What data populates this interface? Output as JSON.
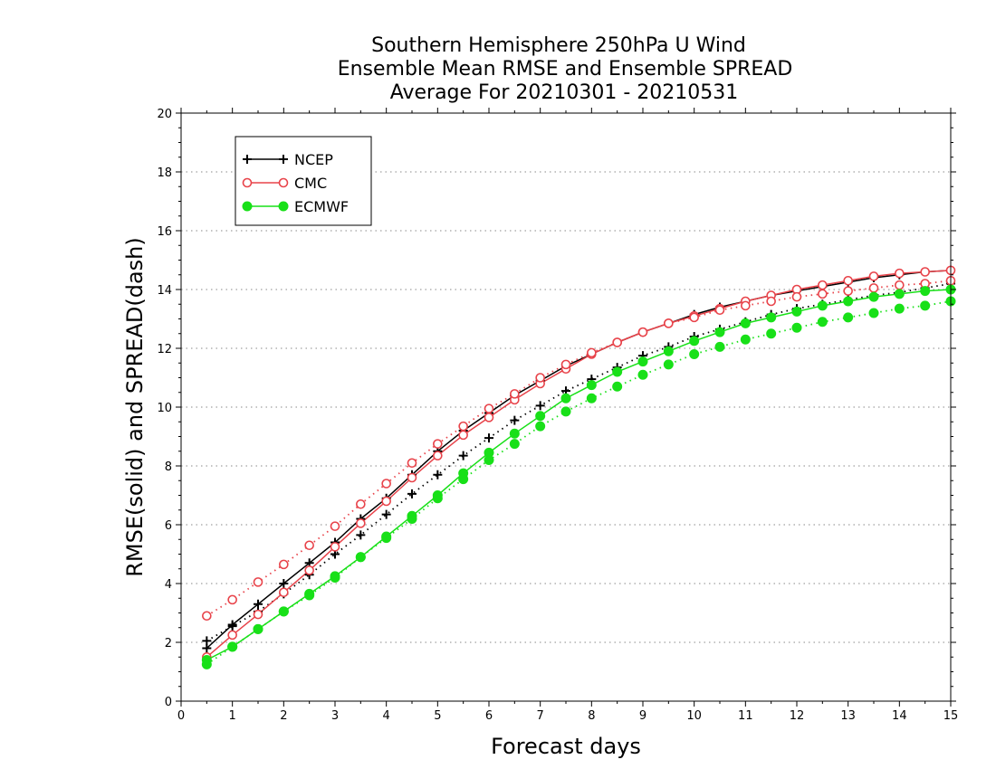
{
  "chart_data": {
    "type": "line",
    "title_lines": [
      "Southern Hemisphere 250hPa U Wind",
      "Ensemble Mean RMSE and Ensemble SPREAD",
      "Average For 20210301 - 20210531"
    ],
    "xlabel": "Forecast days",
    "ylabel": "RMSE(solid) and SPREAD(dash)",
    "xlim": [
      0,
      15
    ],
    "ylim": [
      0,
      20
    ],
    "x_ticks": [
      "0",
      "1",
      "2",
      "3",
      "4",
      "5",
      "6",
      "7",
      "8",
      "9",
      "10",
      "11",
      "12",
      "13",
      "14",
      "15"
    ],
    "y_ticks": [
      "0",
      "2",
      "4",
      "6",
      "8",
      "10",
      "12",
      "14",
      "16",
      "18",
      "20"
    ],
    "grid": "horizontal dotted",
    "legend_position": "top-left",
    "x": [
      0.5,
      1,
      1.5,
      2,
      2.5,
      3,
      3.5,
      4,
      4.5,
      5,
      5.5,
      6,
      6.5,
      7,
      7.5,
      8,
      8.5,
      9,
      9.5,
      10,
      10.5,
      11,
      11.5,
      12,
      12.5,
      13,
      13.5,
      14,
      14.5,
      15
    ],
    "series": [
      {
        "name": "NCEP",
        "color": "#000000",
        "marker": "plus",
        "rmse": [
          1.8,
          2.6,
          3.3,
          4.0,
          4.7,
          5.4,
          6.2,
          6.9,
          7.7,
          8.5,
          9.2,
          9.8,
          10.4,
          10.9,
          11.4,
          11.8,
          12.2,
          12.55,
          12.85,
          13.15,
          13.4,
          13.6,
          13.8,
          13.95,
          14.1,
          14.25,
          14.4,
          14.5,
          14.6,
          14.65
        ],
        "spread": [
          2.05,
          2.55,
          3.05,
          3.65,
          4.3,
          5.0,
          5.65,
          6.35,
          7.05,
          7.7,
          8.35,
          8.95,
          9.55,
          10.05,
          10.55,
          10.95,
          11.35,
          11.75,
          12.05,
          12.4,
          12.65,
          12.9,
          13.15,
          13.35,
          13.5,
          13.65,
          13.8,
          13.9,
          14.05,
          14.2
        ]
      },
      {
        "name": "CMC",
        "color": "#e8434a",
        "marker": "circle-open",
        "rmse": [
          1.5,
          2.25,
          2.95,
          3.7,
          4.45,
          5.25,
          6.05,
          6.8,
          7.6,
          8.35,
          9.05,
          9.65,
          10.25,
          10.8,
          11.3,
          11.8,
          12.2,
          12.55,
          12.85,
          13.1,
          13.35,
          13.6,
          13.8,
          14.0,
          14.15,
          14.3,
          14.45,
          14.55,
          14.6,
          14.65
        ],
        "spread": [
          2.9,
          3.45,
          4.05,
          4.65,
          5.3,
          5.95,
          6.7,
          7.4,
          8.1,
          8.75,
          9.35,
          9.95,
          10.45,
          11.0,
          11.45,
          11.85,
          12.2,
          12.55,
          12.85,
          13.05,
          13.3,
          13.45,
          13.6,
          13.75,
          13.85,
          13.95,
          14.05,
          14.15,
          14.2,
          14.3
        ]
      },
      {
        "name": "ECMWF",
        "color": "#18e018",
        "marker": "circle-filled",
        "rmse": [
          1.4,
          1.85,
          2.45,
          3.05,
          3.65,
          4.25,
          4.9,
          5.6,
          6.3,
          7.0,
          7.75,
          8.45,
          9.1,
          9.7,
          10.3,
          10.75,
          11.2,
          11.55,
          11.9,
          12.25,
          12.55,
          12.85,
          13.05,
          13.25,
          13.45,
          13.6,
          13.75,
          13.85,
          13.95,
          14.0
        ],
        "spread": [
          1.25,
          1.85,
          2.45,
          3.05,
          3.6,
          4.2,
          4.9,
          5.55,
          6.2,
          6.9,
          7.55,
          8.2,
          8.75,
          9.35,
          9.85,
          10.3,
          10.7,
          11.1,
          11.45,
          11.8,
          12.05,
          12.3,
          12.5,
          12.7,
          12.9,
          13.05,
          13.2,
          13.35,
          13.45,
          13.6
        ]
      }
    ]
  }
}
